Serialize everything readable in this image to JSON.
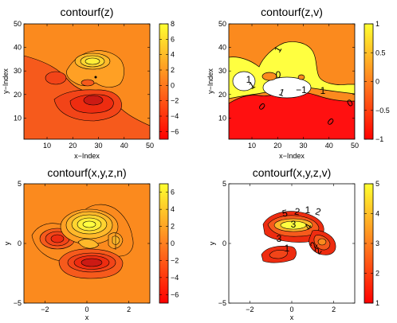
{
  "chart_data": [
    {
      "type": "contour",
      "title": "contourf(z)",
      "xlabel": "x−Index",
      "ylabel": "y−Index",
      "xlim": [
        1,
        50
      ],
      "ylim": [
        1,
        50
      ],
      "xticks": [
        "10",
        "20",
        "30",
        "40",
        "50"
      ],
      "yticks": [
        "10",
        "20",
        "30",
        "40",
        "50"
      ],
      "colorbar": {
        "min": -7,
        "max": 8,
        "ticks": [
          "8",
          "6",
          "4",
          "2",
          "0",
          "−2",
          "−4",
          "−6"
        ]
      },
      "levels": "auto",
      "contour_labels": [],
      "scene": "A"
    },
    {
      "type": "contour",
      "title": "contourf(z,v)",
      "xlabel": "x−Index",
      "ylabel": "y−Index",
      "xlim": [
        1,
        50
      ],
      "ylim": [
        1,
        50
      ],
      "xticks": [
        "10",
        "20",
        "30",
        "40",
        "50"
      ],
      "yticks": [
        "10",
        "20",
        "30",
        "40",
        "50"
      ],
      "colorbar": {
        "min": -1,
        "max": 1,
        "ticks": [
          "1",
          "0.5",
          "0",
          "−0.5",
          "−1"
        ]
      },
      "levels": [
        -1,
        0,
        1
      ],
      "contour_labels": [
        "1",
        "1",
        "0",
        "1",
        "−1",
        "1",
        "1",
        "0",
        "0",
        "0"
      ],
      "scene": "B"
    },
    {
      "type": "contour",
      "title": "contourf(x,y,z,n)",
      "xlabel": "x",
      "ylabel": "y",
      "xlim": [
        -3,
        3
      ],
      "ylim": [
        -5,
        5
      ],
      "xticks": [
        "−2",
        "0",
        "2"
      ],
      "yticks": [
        "5",
        "0",
        "−5"
      ],
      "colorbar": {
        "min": -7,
        "max": 7,
        "ticks": [
          "6",
          "4",
          "2",
          "0",
          "−2",
          "−4",
          "−6"
        ]
      },
      "levels": "n",
      "contour_labels": [],
      "scene": "C"
    },
    {
      "type": "contour",
      "title": "contourf(x,y,z,v)",
      "xlabel": "x",
      "ylabel": "y",
      "xlim": [
        -3,
        3
      ],
      "ylim": [
        -5,
        5
      ],
      "xticks": [
        "−2",
        "0",
        "2"
      ],
      "yticks": [
        "5",
        "0",
        "−5"
      ],
      "colorbar": {
        "min": 1,
        "max": 5,
        "ticks": [
          "5",
          "4",
          "3",
          "2",
          "1"
        ]
      },
      "levels": [
        1,
        2,
        3,
        4,
        5
      ],
      "contour_labels": [
        "5",
        "2",
        "1",
        "2",
        "4",
        "3",
        "3",
        "1",
        "2",
        "2"
      ],
      "scene": "D"
    }
  ],
  "colors": {
    "c_dark_red": "#cc1a14",
    "c_red": "#ee2c10",
    "c_red_orange": "#f24418",
    "c_orange_red": "#f65a1c",
    "c_orange": "#fb8a1e",
    "c_light_orange": "#ffa024",
    "c_amber": "#ffb82a",
    "c_gold": "#ffd430",
    "c_yellow": "#ffee38",
    "c_bright_yellow": "#ffff40",
    "white": "#ffffff",
    "line": "#000000"
  }
}
